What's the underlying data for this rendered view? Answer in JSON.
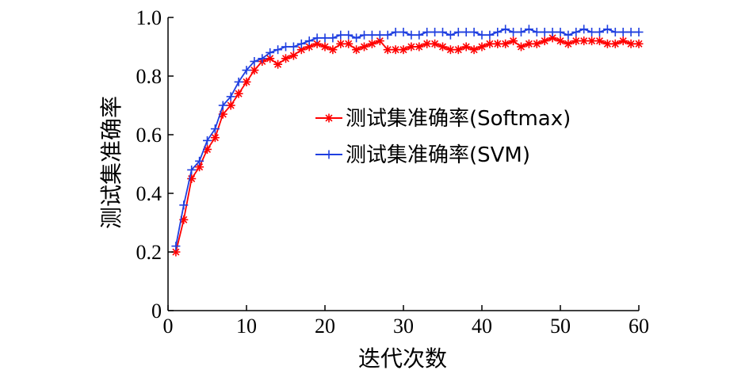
{
  "chart_data": {
    "type": "line",
    "xlabel": "迭代次数",
    "ylabel": "测试集准确率",
    "xlim": [
      0,
      60
    ],
    "ylim": [
      0,
      1.0
    ],
    "xticks": [
      0,
      10,
      20,
      30,
      40,
      50,
      60
    ],
    "xtick_labels": [
      "0",
      "10",
      "20",
      "30",
      "40",
      "50",
      "60"
    ],
    "yticks": [
      0,
      0.2,
      0.4,
      0.6,
      0.8,
      1.0
    ],
    "ytick_labels": [
      "0",
      "0.2",
      "0.4",
      "0.6",
      "0.8",
      "1.0"
    ],
    "grid": false,
    "legend_position": "center-right",
    "x": [
      1,
      2,
      3,
      4,
      5,
      6,
      7,
      8,
      9,
      10,
      11,
      12,
      13,
      14,
      15,
      16,
      17,
      18,
      19,
      20,
      21,
      22,
      23,
      24,
      25,
      26,
      27,
      28,
      29,
      30,
      31,
      32,
      33,
      34,
      35,
      36,
      37,
      38,
      39,
      40,
      41,
      42,
      43,
      44,
      45,
      46,
      47,
      48,
      49,
      50,
      51,
      52,
      53,
      54,
      55,
      56,
      57,
      58,
      59,
      60
    ],
    "series": [
      {
        "name": "测试集准确率(Softmax)",
        "color": "#ff0000",
        "marker": "asterisk",
        "values": [
          0.2,
          0.31,
          0.45,
          0.49,
          0.55,
          0.59,
          0.67,
          0.7,
          0.74,
          0.78,
          0.82,
          0.85,
          0.86,
          0.84,
          0.86,
          0.87,
          0.89,
          0.9,
          0.91,
          0.9,
          0.89,
          0.91,
          0.91,
          0.89,
          0.9,
          0.91,
          0.92,
          0.89,
          0.89,
          0.89,
          0.9,
          0.9,
          0.91,
          0.91,
          0.9,
          0.89,
          0.89,
          0.9,
          0.89,
          0.9,
          0.91,
          0.91,
          0.91,
          0.92,
          0.9,
          0.91,
          0.91,
          0.92,
          0.93,
          0.92,
          0.91,
          0.92,
          0.92,
          0.92,
          0.92,
          0.91,
          0.91,
          0.92,
          0.91,
          0.91
        ]
      },
      {
        "name": "测试集准确率(SVM)",
        "color": "#1f3fe0",
        "marker": "plus",
        "values": [
          0.22,
          0.36,
          0.48,
          0.51,
          0.58,
          0.62,
          0.7,
          0.73,
          0.78,
          0.82,
          0.85,
          0.86,
          0.88,
          0.89,
          0.9,
          0.9,
          0.91,
          0.92,
          0.93,
          0.93,
          0.93,
          0.94,
          0.94,
          0.93,
          0.94,
          0.94,
          0.94,
          0.94,
          0.95,
          0.95,
          0.94,
          0.94,
          0.95,
          0.95,
          0.95,
          0.94,
          0.95,
          0.95,
          0.95,
          0.94,
          0.94,
          0.95,
          0.96,
          0.95,
          0.95,
          0.96,
          0.95,
          0.95,
          0.95,
          0.95,
          0.94,
          0.95,
          0.96,
          0.95,
          0.95,
          0.96,
          0.95,
          0.95,
          0.95,
          0.95
        ]
      }
    ]
  }
}
